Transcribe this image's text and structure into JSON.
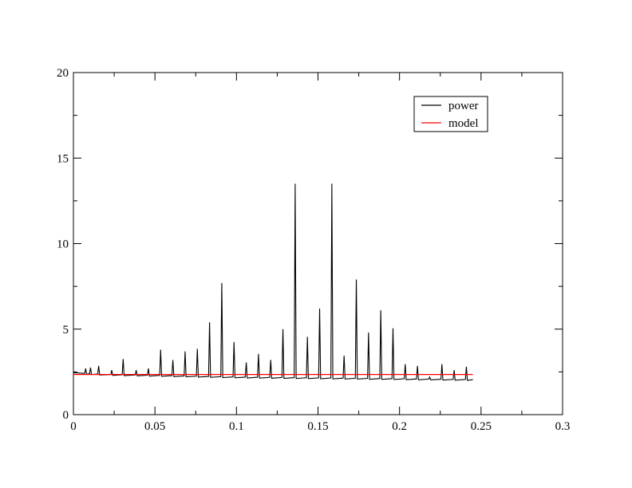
{
  "chart_data": {
    "type": "line",
    "title": "",
    "xlabel": "",
    "ylabel": "",
    "xlim": [
      0,
      0.3
    ],
    "ylim": [
      0,
      20
    ],
    "x_ticks": [
      0,
      0.05,
      0.1,
      0.15,
      0.2,
      0.25,
      0.3
    ],
    "x_tick_labels": [
      "0",
      "0.05",
      "0.1",
      "0.15",
      "0.2",
      "0.25",
      "0.3"
    ],
    "y_ticks": [
      0,
      5,
      10,
      15,
      20
    ],
    "y_tick_labels": [
      "0",
      "5",
      "10",
      "15",
      "20"
    ],
    "grid": false,
    "legend": {
      "placement": "top-right",
      "entries": [
        "power",
        "model"
      ]
    },
    "series": [
      {
        "name": "power",
        "color": "#000000",
        "baseline": {
          "x": [
            0,
            0.02,
            0.05,
            0.1,
            0.15,
            0.2,
            0.245
          ],
          "y": [
            2.45,
            2.35,
            2.3,
            2.2,
            2.15,
            2.1,
            2.05
          ]
        },
        "peaks": [
          {
            "x": 0.0075,
            "y": 2.7
          },
          {
            "x": 0.0105,
            "y": 2.75
          },
          {
            "x": 0.0155,
            "y": 2.85
          },
          {
            "x": 0.0235,
            "y": 2.6
          },
          {
            "x": 0.0305,
            "y": 3.25
          },
          {
            "x": 0.0385,
            "y": 2.6
          },
          {
            "x": 0.046,
            "y": 2.7
          },
          {
            "x": 0.0535,
            "y": 3.8
          },
          {
            "x": 0.061,
            "y": 3.2
          },
          {
            "x": 0.0685,
            "y": 3.7
          },
          {
            "x": 0.076,
            "y": 3.85
          },
          {
            "x": 0.0835,
            "y": 5.4
          },
          {
            "x": 0.091,
            "y": 7.7
          },
          {
            "x": 0.0985,
            "y": 4.25
          },
          {
            "x": 0.106,
            "y": 3.05
          },
          {
            "x": 0.1135,
            "y": 3.55
          },
          {
            "x": 0.121,
            "y": 3.2
          },
          {
            "x": 0.1285,
            "y": 5.0
          },
          {
            "x": 0.136,
            "y": 13.5
          },
          {
            "x": 0.1435,
            "y": 4.55
          },
          {
            "x": 0.151,
            "y": 6.2
          },
          {
            "x": 0.1585,
            "y": 13.5
          },
          {
            "x": 0.166,
            "y": 3.45
          },
          {
            "x": 0.1735,
            "y": 7.9
          },
          {
            "x": 0.181,
            "y": 4.8
          },
          {
            "x": 0.1885,
            "y": 6.1
          },
          {
            "x": 0.196,
            "y": 5.05
          },
          {
            "x": 0.2035,
            "y": 2.95
          },
          {
            "x": 0.211,
            "y": 2.85
          },
          {
            "x": 0.2185,
            "y": 2.2
          },
          {
            "x": 0.226,
            "y": 2.95
          },
          {
            "x": 0.2335,
            "y": 2.6
          },
          {
            "x": 0.241,
            "y": 2.8
          }
        ]
      },
      {
        "name": "model",
        "color": "#ff0000",
        "x": [
          0,
          0.245
        ],
        "y": [
          2.35,
          2.35
        ]
      }
    ]
  }
}
